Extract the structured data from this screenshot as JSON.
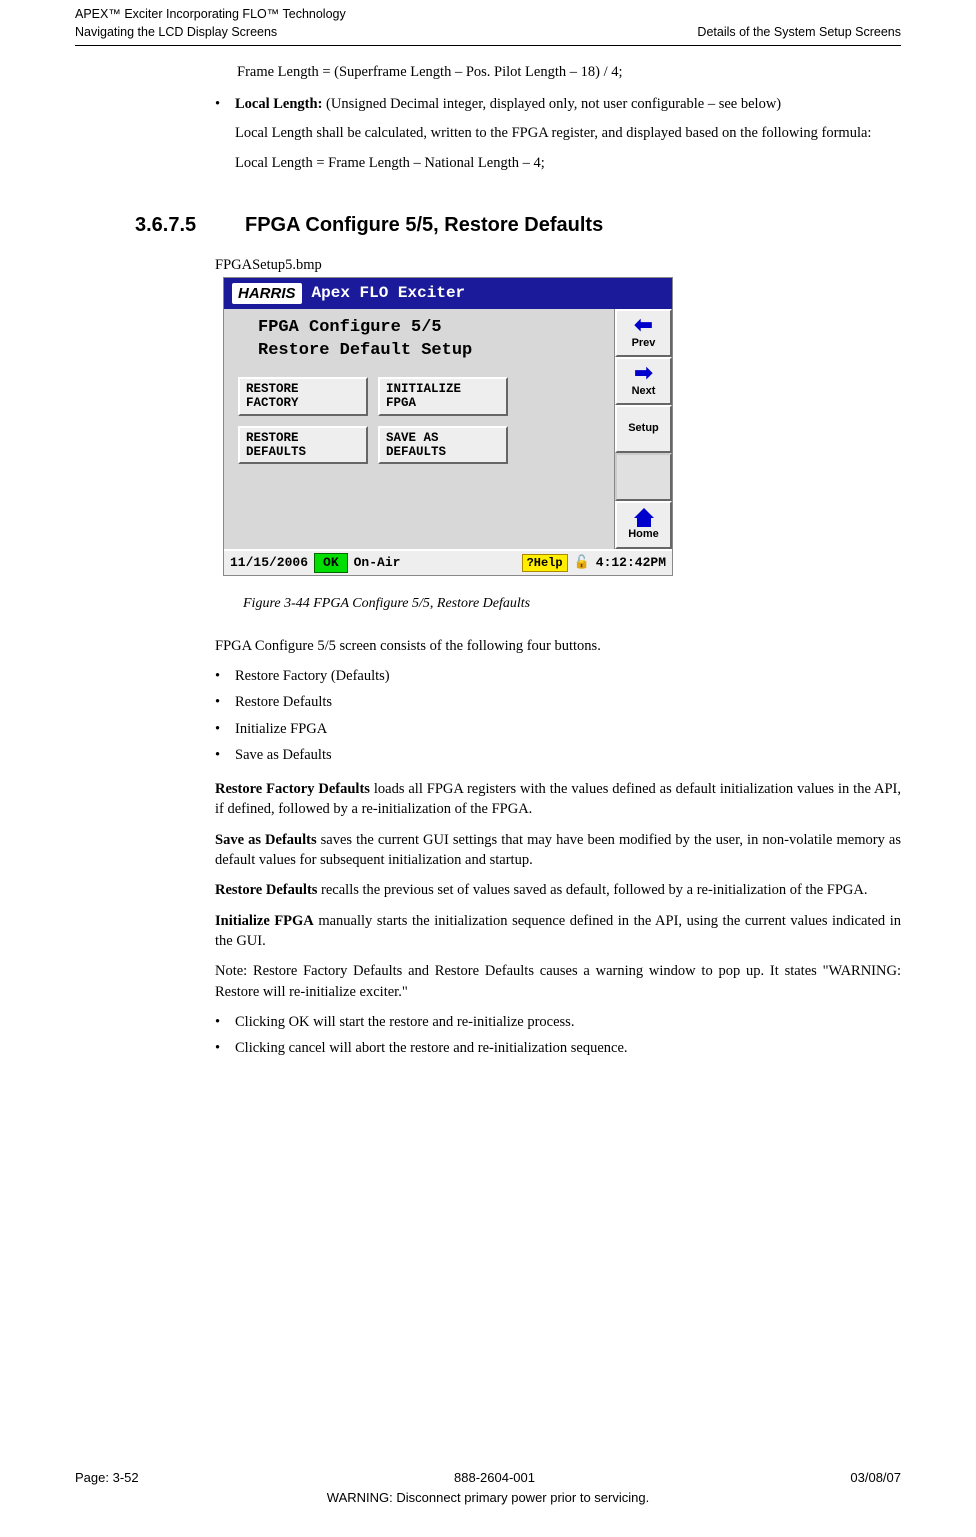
{
  "header": {
    "product_line1": "APEX™ Exciter Incorporating FLO™ Technology",
    "product_line2": "Navigating the LCD Display Screens",
    "right_title": "Details of the System Setup Screens"
  },
  "body": {
    "frame_formula": "Frame Length = (Superframe Length – Pos. Pilot Length – 18) / 4;",
    "local_length_label": "Local Length:",
    "local_length_desc": " (Unsigned Decimal integer, displayed only, not user configurable – see below)",
    "local_length_para": "Local Length shall be calculated, written to the FPGA register, and displayed based on the following formula:",
    "local_formula": "Local Length = Frame Length – National Length – 4;",
    "section_num": "3.6.7.5",
    "section_title": "FPGA Configure 5/5, Restore Defaults",
    "bmp_name": "FPGASetup5.bmp",
    "figure_caption": "Figure 3-44  FPGA Configure 5/5, Restore Defaults",
    "intro_sentence": "FPGA Configure 5/5 screen consists of the following four buttons.",
    "list1": [
      "Restore Factory (Defaults)",
      "Restore Defaults",
      "Initialize FPGA",
      "Save as Defaults"
    ],
    "p_restore_factory_label": "Restore Factory Defaults",
    "p_restore_factory": " loads all FPGA registers with the values defined as default initialization values in the API, if defined, followed by a re-initialization of the FPGA.",
    "p_save_label": "Save as Defaults",
    "p_save": " saves the current GUI settings that may have been modified by the user, in non-volatile memory as default values for subsequent initialization and startup.",
    "p_restore_def_label": "Restore Defaults",
    "p_restore_def": " recalls the previous set of values saved as default, followed by a re-initialization of the FPGA.",
    "p_init_label": "Initialize FPGA",
    "p_init": " manually starts the initialization sequence defined in the API, using the current values indicated in the GUI.",
    "note": "Note: Restore Factory Defaults and Restore Defaults causes a warning window to pop up. It states \"WARNING: Restore will re-initialize exciter.\"",
    "list2": [
      "Clicking OK will start the restore and re-initialize process.",
      "Clicking cancel will abort the restore and re-initialization sequence."
    ]
  },
  "screenshot": {
    "logo": "HARRIS",
    "title": "Apex FLO Exciter",
    "heading_line1": "FPGA Configure 5/5",
    "heading_line2": "Restore Default Setup",
    "buttons": {
      "restore_factory": "RESTORE\nFACTORY",
      "initialize_fpga": "INITIALIZE\nFPGA",
      "restore_defaults": "RESTORE\nDEFAULTS",
      "save_as_defaults": "SAVE AS\nDEFAULTS"
    },
    "nav": {
      "prev": "Prev",
      "next": "Next",
      "setup": "Setup",
      "home": "Home"
    },
    "status": {
      "date": "11/15/2006",
      "ok": "OK",
      "onair": "On-Air",
      "help": "?Help",
      "time": "4:12:42PM"
    },
    "colors": {
      "titlebar_bg": "#1a1a9a",
      "ok_bg": "#00dd00",
      "help_bg": "#ffee00",
      "arrow_color": "#0000cc",
      "panel_bg": "#d8d8d8"
    }
  },
  "footer": {
    "page": "Page: 3-52",
    "docnum": "888-2604-001",
    "date": "03/08/07",
    "warning": "WARNING: Disconnect primary power prior to servicing."
  }
}
